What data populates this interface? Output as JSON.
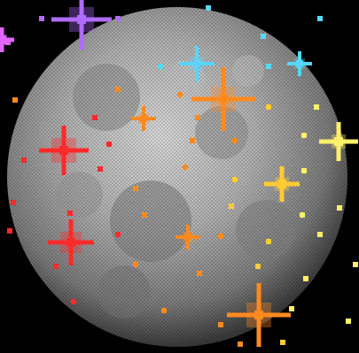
{
  "scene": {
    "subject": "moon-icon",
    "sparkle_icon": "sparkle-icon",
    "pixel_icon": "pixel-dot-icon"
  },
  "colors": {
    "background": "#000000",
    "moon_light": "#d9d9d9",
    "moon_mid": "#a8a8a8",
    "moon_dark": "#6f6f6f",
    "moon_edge": "#3a3a3a",
    "violet": "#b06bff",
    "magenta": "#e066ff",
    "cyan": "#57d7ff",
    "orange": "#ff8a1f",
    "red": "#ff2a2a",
    "yellow": "#fff06a",
    "gold": "#ffcc33"
  }
}
